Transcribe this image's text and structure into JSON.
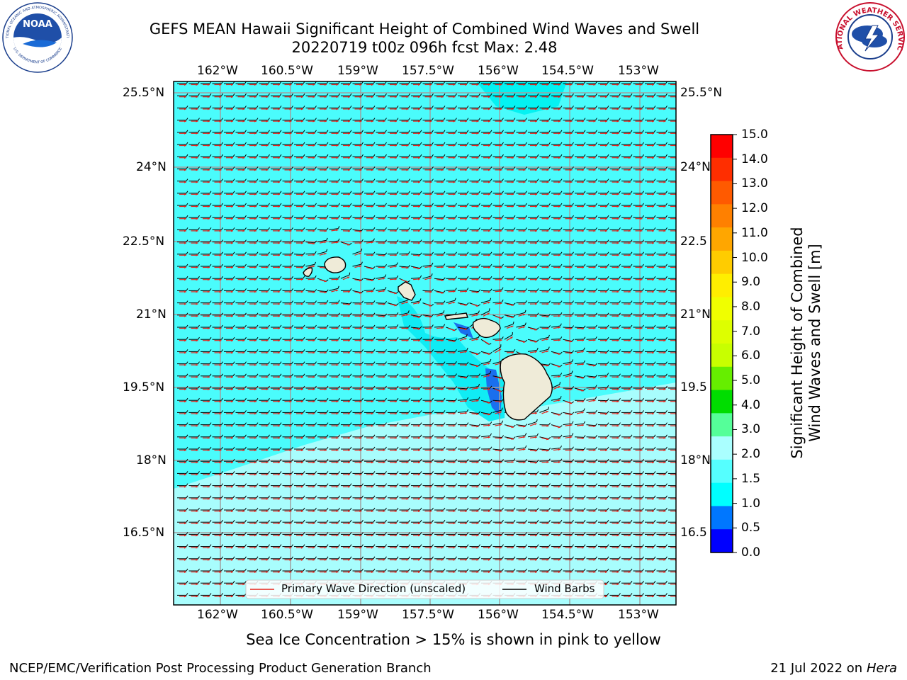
{
  "header": {
    "title_line1": "GEFS MEAN Hawaii Significant Height of Combined Wind Waves and Swell",
    "title_line2": "20220719 t00z 096h fcst   Max: 2.48",
    "noaa_logo_text": "NOAA",
    "noaa_ring_text_top": "NATIONAL OCEANIC AND ATMOSPHERIC ADMINISTRATION",
    "noaa_ring_text_bottom": "U.S. DEPARTMENT OF COMMERCE",
    "nws_ring_text": "NATIONAL WEATHER SERVICE"
  },
  "map": {
    "lon_labels": [
      "162°W",
      "160.5°W",
      "159°W",
      "157.5°W",
      "156°W",
      "154.5°W",
      "153°W"
    ],
    "lat_labels_left": [
      "25.5°N",
      "24°N",
      "22.5°N",
      "21°N",
      "19.5°N",
      "18°N",
      "16.5°N"
    ],
    "lat_labels_right": [
      "25.5°N",
      "24°N",
      "22.5",
      "21°N",
      "19.5",
      "18°N",
      "16.5"
    ],
    "legend": {
      "wave_direction": "Primary Wave Direction (unscaled)",
      "wind_barbs": "Wind Barbs",
      "wave_color": "#e8231a",
      "barb_color": "#000000"
    },
    "projection_bounds": {
      "lon_min": -163.0,
      "lon_max": -152.2,
      "lat_min": 14.8,
      "lat_max": 25.7
    }
  },
  "colorbar": {
    "label_line1": "Significant Height of Combined",
    "label_line2": "Wind Waves and Swell [m]",
    "ticks": [
      "15.0",
      "14.0",
      "13.0",
      "12.0",
      "11.0",
      "10.0",
      "9.0",
      "8.0",
      "7.0",
      "6.0",
      "5.0",
      "4.0",
      "3.0",
      "2.0",
      "1.5",
      "1.0",
      "0.5",
      "0.0"
    ],
    "colors_top_to_bottom": [
      "#ff0000",
      "#ff2e00",
      "#ff5a00",
      "#ff8000",
      "#ffa600",
      "#ffcc00",
      "#ffee00",
      "#f0ff00",
      "#ddff00",
      "#c8ff00",
      "#66ee00",
      "#00dd00",
      "#55ff99",
      "#aaffff",
      "#55ffff",
      "#00ffff",
      "#0077ff",
      "#0000ff"
    ]
  },
  "footer": {
    "sea_ice_note": "Sea Ice Concentration > 15% is shown in pink to yellow",
    "branch": "NCEP/EMC/Verification Post Processing Product Generation Branch",
    "date_prefix": "21 Jul 2022 on ",
    "host": "Hera"
  }
}
